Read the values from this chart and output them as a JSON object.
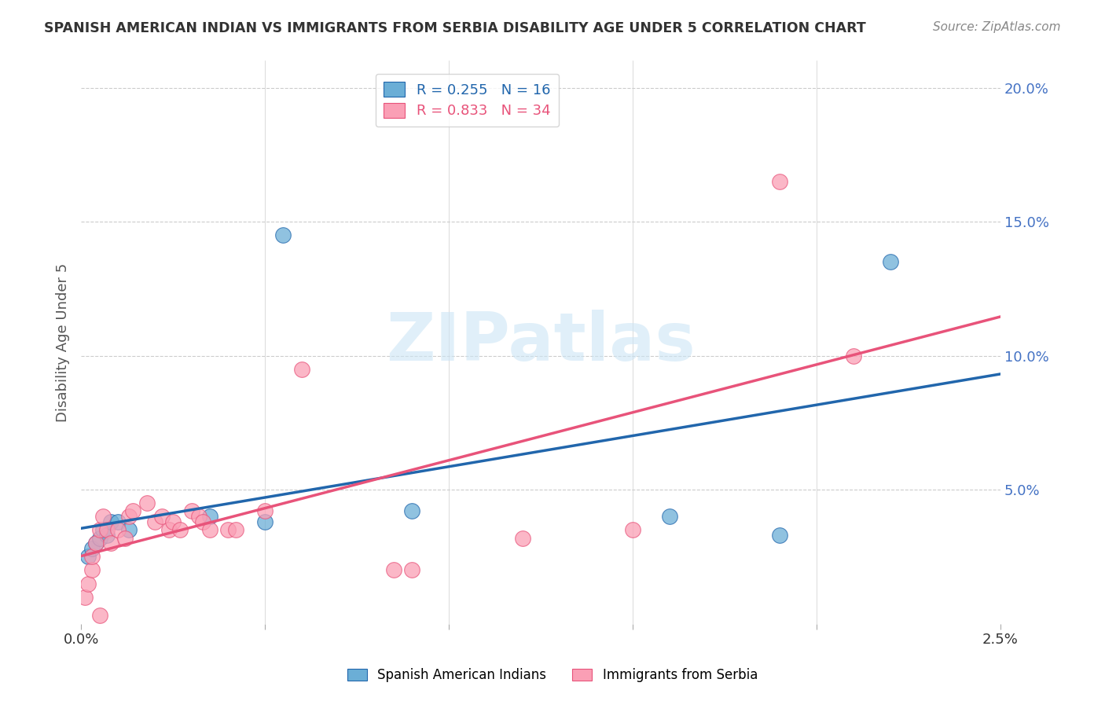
{
  "title": "SPANISH AMERICAN INDIAN VS IMMIGRANTS FROM SERBIA DISABILITY AGE UNDER 5 CORRELATION CHART",
  "source": "Source: ZipAtlas.com",
  "ylabel": "Disability Age Under 5",
  "watermark": "ZIPatlas",
  "legend1_label": "R = 0.255   N = 16",
  "legend2_label": "R = 0.833   N = 34",
  "legend1_series": "Spanish American Indians",
  "legend2_series": "Immigrants from Serbia",
  "blue_color": "#6baed6",
  "pink_color": "#fa9fb5",
  "blue_line_color": "#2166ac",
  "pink_line_color": "#e8537a",
  "right_axis_color": "#4472c4",
  "ytick_labels": [
    "20.0%",
    "15.0%",
    "10.0%",
    "5.0%"
  ],
  "ytick_values": [
    0.2,
    0.15,
    0.1,
    0.05
  ],
  "xlim": [
    0.0,
    0.025
  ],
  "ylim": [
    0.0,
    0.21
  ],
  "blue_R": 0.255,
  "blue_N": 16,
  "pink_R": 0.833,
  "pink_N": 34,
  "blue_points_x": [
    0.0002,
    0.0003,
    0.0004,
    0.0005,
    0.0006,
    0.0007,
    0.0008,
    0.001,
    0.0013,
    0.0035,
    0.005,
    0.0055,
    0.009,
    0.016,
    0.019,
    0.022
  ],
  "blue_points_y": [
    0.025,
    0.028,
    0.03,
    0.032,
    0.035,
    0.033,
    0.038,
    0.038,
    0.035,
    0.04,
    0.038,
    0.145,
    0.042,
    0.04,
    0.033,
    0.135
  ],
  "pink_points_x": [
    0.0001,
    0.0002,
    0.0003,
    0.0003,
    0.0004,
    0.0005,
    0.0006,
    0.0007,
    0.0008,
    0.001,
    0.0012,
    0.0013,
    0.0014,
    0.0018,
    0.002,
    0.0022,
    0.0024,
    0.0025,
    0.0027,
    0.003,
    0.0032,
    0.0033,
    0.0035,
    0.004,
    0.0042,
    0.005,
    0.006,
    0.0085,
    0.009,
    0.012,
    0.015,
    0.019,
    0.021,
    0.0005
  ],
  "pink_points_y": [
    0.01,
    0.015,
    0.02,
    0.025,
    0.03,
    0.035,
    0.04,
    0.035,
    0.03,
    0.035,
    0.032,
    0.04,
    0.042,
    0.045,
    0.038,
    0.04,
    0.035,
    0.038,
    0.035,
    0.042,
    0.04,
    0.038,
    0.035,
    0.035,
    0.035,
    0.042,
    0.095,
    0.02,
    0.02,
    0.032,
    0.035,
    0.165,
    0.1,
    0.003
  ]
}
